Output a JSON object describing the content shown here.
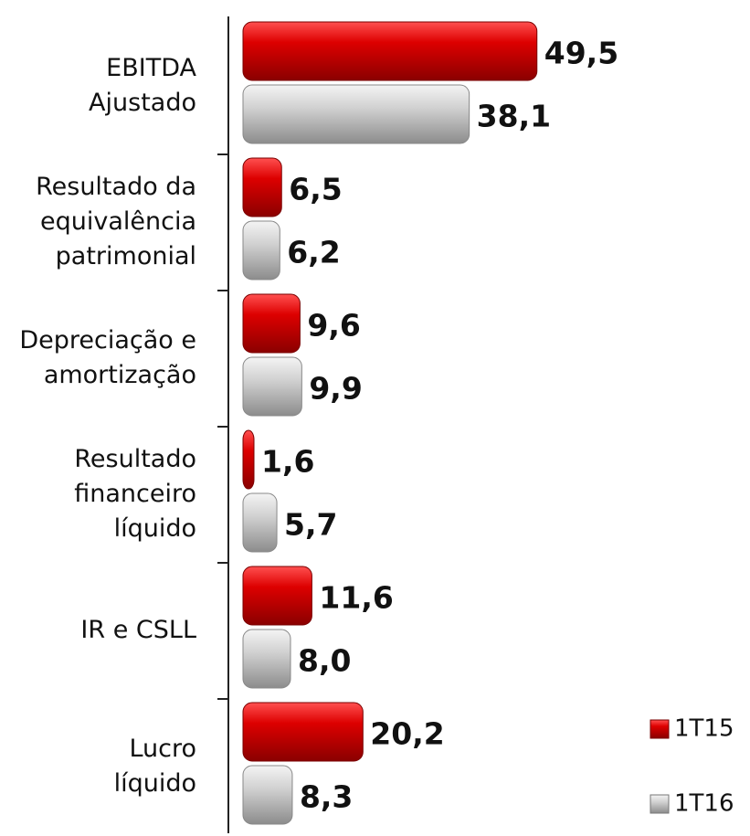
{
  "chart_data": {
    "type": "barh",
    "categories": [
      [
        "EBITDA",
        "Ajustado"
      ],
      [
        "Resultado da",
        "equivalência",
        "patrimonial"
      ],
      [
        "Depreciação e",
        "amortização"
      ],
      [
        "Resultado",
        "financeiro",
        "líquido"
      ],
      [
        "IR e CSLL"
      ],
      [
        "Lucro",
        "líquido"
      ]
    ],
    "series": [
      {
        "name": "1T15",
        "color": "#cc0000",
        "values": [
          49.5,
          6.5,
          9.6,
          1.6,
          11.6,
          20.2
        ],
        "value_labels": [
          "49,5",
          "6,5",
          "9,6",
          "1,6",
          "11,6",
          "20,2"
        ]
      },
      {
        "name": "1T16",
        "color": "#c8c8c8",
        "values": [
          38.1,
          6.2,
          9.9,
          5.7,
          8.0,
          8.3
        ],
        "value_labels": [
          "38,1",
          "6,2",
          "9,9",
          "5,7",
          "8,0",
          "8,3"
        ]
      }
    ],
    "legend": "bottom-right"
  }
}
